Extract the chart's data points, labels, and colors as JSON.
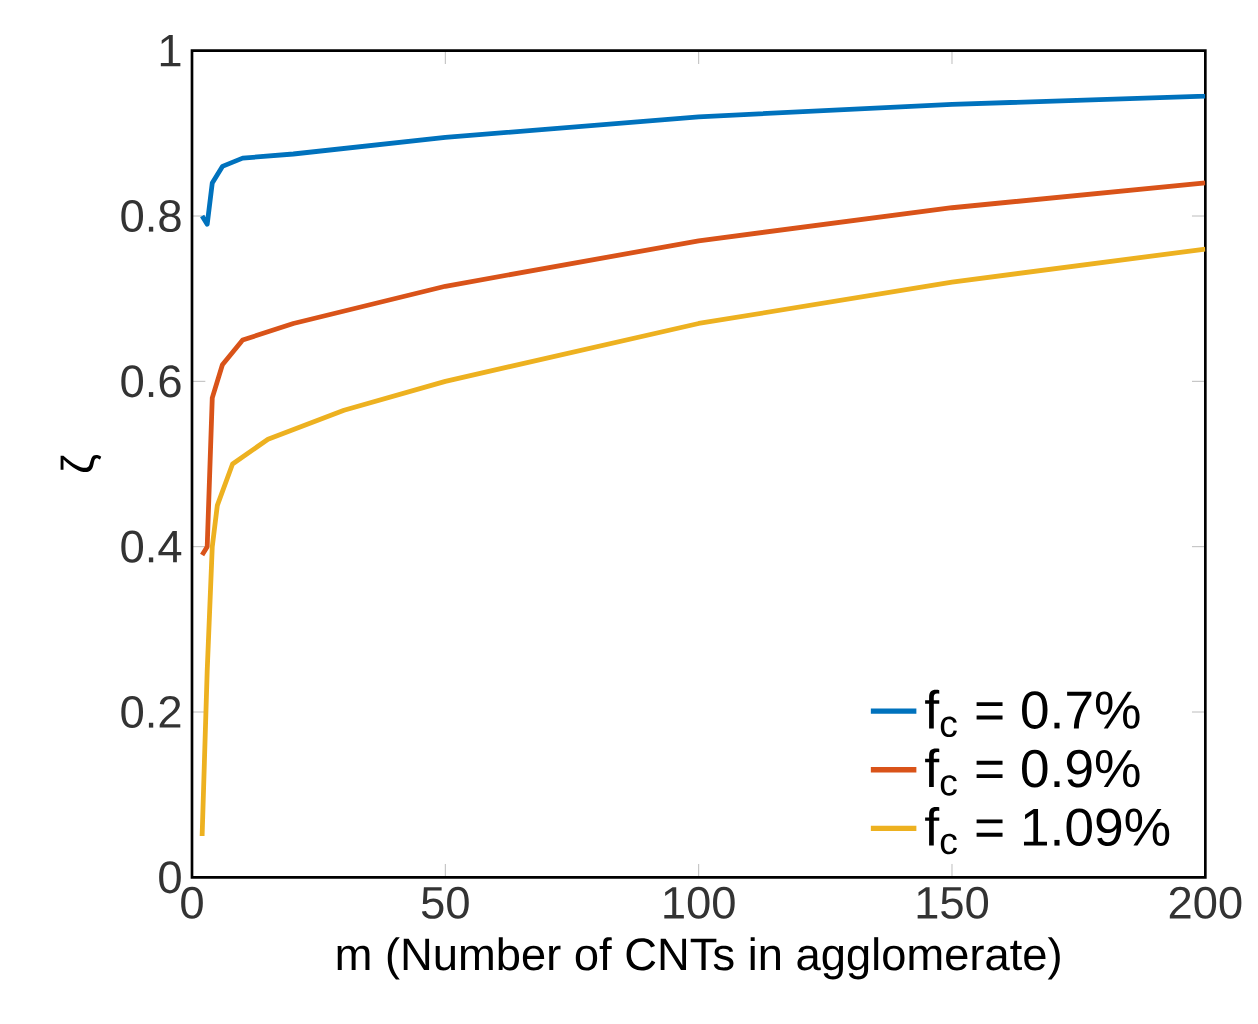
{
  "chart_data": {
    "type": "line",
    "xlabel": "m (Number of CNTs in agglomerate)",
    "ylabel": "ζ",
    "xlim": [
      0,
      200
    ],
    "ylim": [
      0,
      1
    ],
    "xticks": [
      0,
      50,
      100,
      150,
      200
    ],
    "yticks": [
      0,
      0.2,
      0.4,
      0.6,
      0.8,
      1
    ],
    "legend": "bottom right",
    "grid": false,
    "line_style": "solid",
    "marker": "none",
    "series": [
      {
        "name": "f$_{c}$ = 0.7%",
        "color": "#0072bd",
        "x": [
          2,
          3,
          4,
          6,
          10,
          20,
          50,
          100,
          150,
          200
        ],
        "values": [
          0.8,
          0.79,
          0.84,
          0.86,
          0.87,
          0.875,
          0.895,
          0.92,
          0.935,
          0.945
        ]
      },
      {
        "name": "f$_{c}$ = 0.9%",
        "color": "#d95319",
        "x": [
          2,
          3,
          4,
          6,
          10,
          20,
          50,
          100,
          150,
          200
        ],
        "values": [
          0.39,
          0.4,
          0.58,
          0.62,
          0.65,
          0.67,
          0.715,
          0.77,
          0.81,
          0.84
        ]
      },
      {
        "name": "f$_{c}$ = 1.09%",
        "color": "#edb120",
        "x": [
          2,
          3,
          4,
          5,
          8,
          15,
          30,
          50,
          100,
          150,
          200
        ],
        "values": [
          0.05,
          0.25,
          0.4,
          0.45,
          0.5,
          0.53,
          0.565,
          0.6,
          0.67,
          0.72,
          0.76
        ]
      }
    ]
  }
}
